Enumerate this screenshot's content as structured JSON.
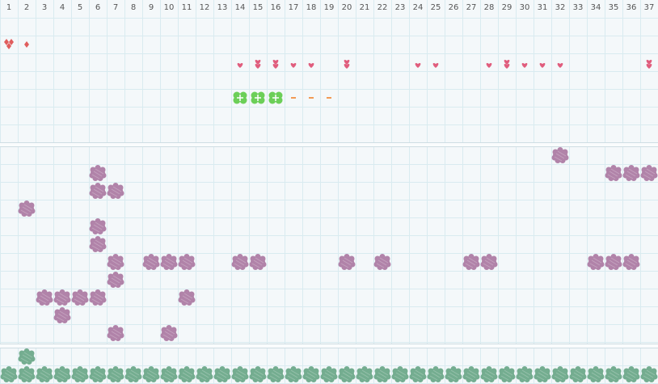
{
  "columns": [
    "1",
    "2",
    "3",
    "4",
    "5",
    "6",
    "7",
    "8",
    "9",
    "10",
    "11",
    "12",
    "13",
    "14",
    "15",
    "16",
    "17",
    "18",
    "19",
    "20",
    "21",
    "22",
    "23",
    "24",
    "25",
    "26",
    "27",
    "28",
    "29",
    "30",
    "31",
    "32",
    "33",
    "34",
    "35",
    "36",
    "37"
  ],
  "colors": {
    "heart": "#e05d7d",
    "diamond": "#e05d5d",
    "dash": "#f29a55",
    "clover": "#6ccf58",
    "purple_block": "#b183a9",
    "green_block": "#74ad90",
    "grid_line": "#d9ebf0"
  },
  "section1": {
    "diamonds": [
      {
        "col": 1,
        "row": 0,
        "count": 3
      },
      {
        "col": 2,
        "row": 0,
        "count": 1
      }
    ],
    "hearts": [
      {
        "col": 14,
        "row": 2,
        "count": 1
      },
      {
        "col": 15,
        "row": 2,
        "count": 2
      },
      {
        "col": 16,
        "row": 2,
        "count": 2
      },
      {
        "col": 17,
        "row": 2,
        "count": 1
      },
      {
        "col": 18,
        "row": 2,
        "count": 1
      },
      {
        "col": 20,
        "row": 2,
        "count": 2
      },
      {
        "col": 24,
        "row": 2,
        "count": 1
      },
      {
        "col": 25,
        "row": 2,
        "count": 1
      },
      {
        "col": 28,
        "row": 2,
        "count": 1
      },
      {
        "col": 29,
        "row": 2,
        "count": 2
      },
      {
        "col": 30,
        "row": 2,
        "count": 1
      },
      {
        "col": 31,
        "row": 2,
        "count": 1
      },
      {
        "col": 32,
        "row": 2,
        "count": 1
      },
      {
        "col": 37,
        "row": 2,
        "count": 2
      }
    ],
    "clovers": [
      {
        "col": 14,
        "row": 3
      },
      {
        "col": 15,
        "row": 3
      },
      {
        "col": 16,
        "row": 3
      }
    ],
    "dashes": [
      {
        "col": 17,
        "row": 3
      },
      {
        "col": 18,
        "row": 3
      },
      {
        "col": 19,
        "row": 3
      }
    ]
  },
  "section2": {
    "blocks": [
      {
        "col": 32,
        "row": 0
      },
      {
        "col": 6,
        "row": 1
      },
      {
        "col": 35,
        "row": 1
      },
      {
        "col": 36,
        "row": 1
      },
      {
        "col": 37,
        "row": 1
      },
      {
        "col": 6,
        "row": 2
      },
      {
        "col": 7,
        "row": 2
      },
      {
        "col": 2,
        "row": 3
      },
      {
        "col": 6,
        "row": 4
      },
      {
        "col": 6,
        "row": 5
      },
      {
        "col": 7,
        "row": 6
      },
      {
        "col": 9,
        "row": 6
      },
      {
        "col": 10,
        "row": 6
      },
      {
        "col": 11,
        "row": 6
      },
      {
        "col": 14,
        "row": 6
      },
      {
        "col": 15,
        "row": 6
      },
      {
        "col": 20,
        "row": 6
      },
      {
        "col": 22,
        "row": 6
      },
      {
        "col": 27,
        "row": 6
      },
      {
        "col": 28,
        "row": 6
      },
      {
        "col": 34,
        "row": 6
      },
      {
        "col": 35,
        "row": 6
      },
      {
        "col": 36,
        "row": 6
      },
      {
        "col": 7,
        "row": 7
      },
      {
        "col": 3,
        "row": 8
      },
      {
        "col": 4,
        "row": 8
      },
      {
        "col": 5,
        "row": 8
      },
      {
        "col": 6,
        "row": 8
      },
      {
        "col": 11,
        "row": 8
      },
      {
        "col": 4,
        "row": 9
      },
      {
        "col": 7,
        "row": 10
      },
      {
        "col": 10,
        "row": 10
      }
    ]
  },
  "section3": {
    "blocks_row0": [
      2
    ],
    "blocks_row1_all": true
  }
}
